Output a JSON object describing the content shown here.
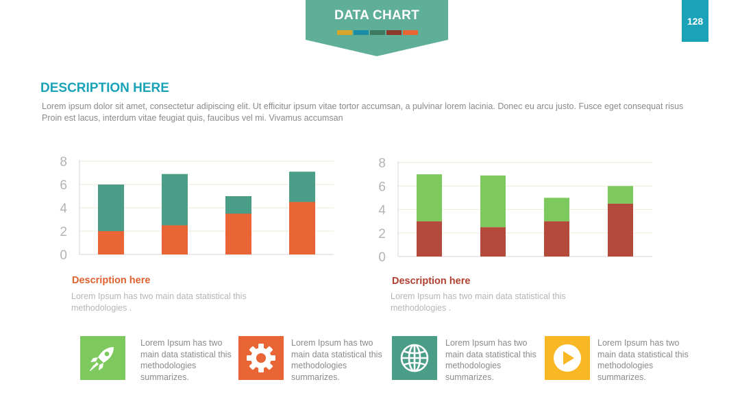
{
  "banner": {
    "title": "DATA CHART",
    "color": "#5fae98",
    "stripes": [
      "#d6a52a",
      "#1b8da4",
      "#3c7a63",
      "#8b3a2c",
      "#ea6536"
    ]
  },
  "page_number": {
    "value": "128",
    "color": "#1aa3b8"
  },
  "description": {
    "title": "DESCRIPTION HERE",
    "title_color": "#1aa3b8",
    "body": "Lorem ipsum dolor sit amet, consectetur adipiscing elit. Ut efficitur ipsum vitae tortor accumsan, a pulvinar lorem lacinia. Donec eu arcu justo. Fusce eget consequat risus Proin est lacus, interdum vitae feugiat quis, faucibus vel mi.  Vivamus accumsan"
  },
  "chart_data": [
    {
      "type": "bar",
      "stacked": true,
      "title": "",
      "xlabel": "",
      "ylabel": "",
      "categories": [
        "",
        "",
        "",
        ""
      ],
      "ylim": [
        0,
        8
      ],
      "yticks": [
        0,
        2,
        4,
        6,
        8
      ],
      "grid": true,
      "series": [
        {
          "values": [
            2,
            2.5,
            3.5,
            4.5
          ],
          "color": "#ea6536"
        },
        {
          "values": [
            4,
            4.4,
            1.5,
            2.6
          ],
          "color": "#4a9d86"
        }
      ]
    },
    {
      "type": "bar",
      "stacked": true,
      "title": "",
      "xlabel": "",
      "ylabel": "",
      "categories": [
        "",
        "",
        "",
        ""
      ],
      "ylim": [
        0,
        8
      ],
      "yticks": [
        0,
        2,
        4,
        6,
        8
      ],
      "grid": true,
      "series": [
        {
          "values": [
            3,
            2.5,
            3,
            4.5
          ],
          "color": "#b34a3b"
        },
        {
          "values": [
            4,
            4.4,
            2,
            1.5
          ],
          "color": "#7dc95e"
        }
      ]
    }
  ],
  "captions": [
    {
      "title": "Description here",
      "title_color": "#e0622f",
      "body": "Lorem Ipsum has two main data statistical this methodologies ."
    },
    {
      "title": "Description here",
      "title_color": "#b0402f",
      "body": "Lorem Ipsum has two main data statistical this methodologies ."
    }
  ],
  "features": [
    {
      "icon": "rocket-icon",
      "color": "#7dc95e",
      "text": "Lorem Ipsum has two main data statistical this methodologies summarizes."
    },
    {
      "icon": "gear-icon",
      "color": "#ea6536",
      "text": "Lorem Ipsum has two main data statistical this methodologies summarizes."
    },
    {
      "icon": "globe-icon",
      "color": "#4a9d86",
      "text": "Lorem Ipsum has two main data statistical this methodologies summarizes."
    },
    {
      "icon": "play-icon",
      "color": "#f9b723",
      "text": "Lorem Ipsum has two main data statistical this methodologies summarizes."
    }
  ]
}
